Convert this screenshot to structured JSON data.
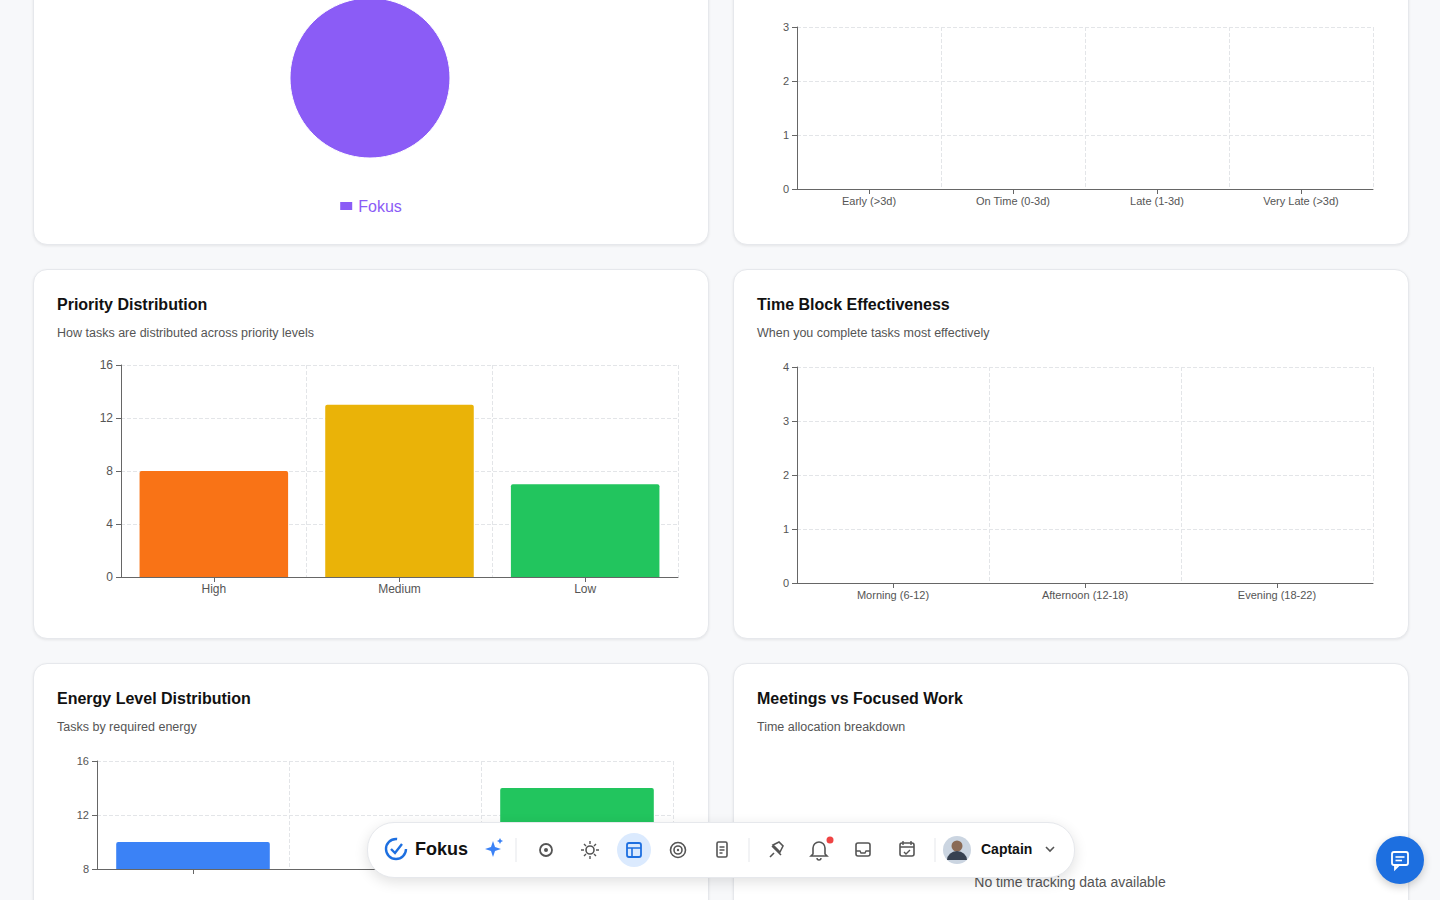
{
  "chart_data": [
    {
      "type": "pie",
      "categories": [
        "Fokus"
      ],
      "values": [
        100
      ],
      "colors": [
        "#8b5cf6"
      ],
      "legend": "bottom"
    },
    {
      "type": "bar",
      "categories": [
        "Early (>3d)",
        "On Time (0-3d)",
        "Late (1-3d)",
        "Very Late (>3d)"
      ],
      "values": [
        0,
        0,
        0,
        0
      ],
      "ylim": [
        0,
        3
      ],
      "yticks": [
        0,
        1,
        2,
        3
      ],
      "grid": true
    },
    {
      "type": "bar",
      "title": "Priority Distribution",
      "subtitle": "How tasks are distributed across priority levels",
      "categories": [
        "High",
        "Medium",
        "Low"
      ],
      "values": [
        8,
        13,
        7
      ],
      "colors": [
        "#f97316",
        "#eab308",
        "#22c55e"
      ],
      "ylim": [
        0,
        16
      ],
      "yticks": [
        0,
        4,
        8,
        12,
        16
      ],
      "grid": true
    },
    {
      "type": "bar",
      "title": "Time Block Effectiveness",
      "subtitle": "When you complete tasks most effectively",
      "categories": [
        "Morning (6-12)",
        "Afternoon (12-18)",
        "Evening (18-22)"
      ],
      "values": [
        0,
        0,
        0
      ],
      "ylim": [
        0,
        4
      ],
      "yticks": [
        0,
        1,
        2,
        3,
        4
      ],
      "grid": true
    },
    {
      "type": "bar",
      "title": "Energy Level Distribution",
      "subtitle": "Tasks by required energy",
      "categories": [
        null,
        null,
        null
      ],
      "values": [
        10,
        null,
        14
      ],
      "colors": [
        "#3b82f6",
        null,
        "#22c55e"
      ],
      "ylim": [
        8,
        16
      ],
      "yticks": [
        8,
        12,
        16
      ],
      "grid": true,
      "tick_labels": "y"
    }
  ],
  "empty_panel": {
    "title": "Meetings vs Focused Work",
    "subtitle": "Time allocation breakdown",
    "message": "No time tracking data available"
  },
  "toolbar": {
    "brand": "Fokus",
    "user": "Captain"
  }
}
